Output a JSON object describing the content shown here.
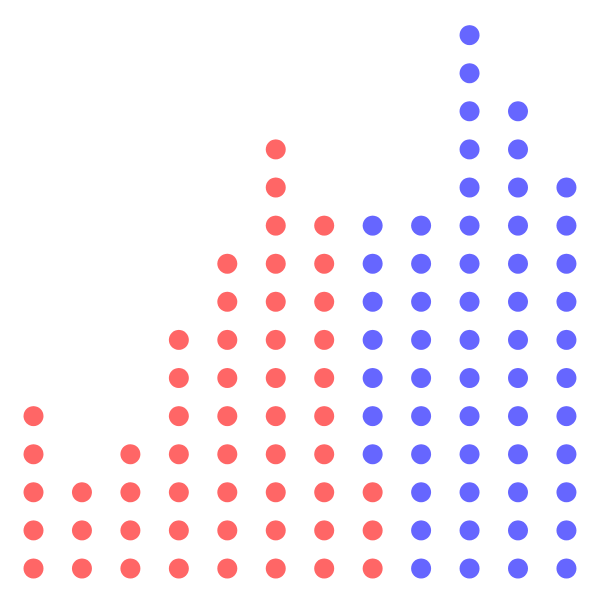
{
  "chart_data": {
    "type": "dot-stack",
    "title": "",
    "xlabel": "",
    "ylabel": "",
    "grid": false,
    "legend": "none",
    "ylim": [
      0,
      15
    ],
    "colors": {
      "red": "#ff6666",
      "blue": "#6666ff"
    },
    "columns": [
      {
        "index": 1,
        "red": 5,
        "blue": 0
      },
      {
        "index": 2,
        "red": 3,
        "blue": 0
      },
      {
        "index": 3,
        "red": 4,
        "blue": 0
      },
      {
        "index": 4,
        "red": 7,
        "blue": 0
      },
      {
        "index": 5,
        "red": 9,
        "blue": 0
      },
      {
        "index": 6,
        "red": 12,
        "blue": 0
      },
      {
        "index": 7,
        "red": 10,
        "blue": 0
      },
      {
        "index": 8,
        "red": 3,
        "blue": 7
      },
      {
        "index": 9,
        "red": 0,
        "blue": 10
      },
      {
        "index": 10,
        "red": 0,
        "blue": 15
      },
      {
        "index": 11,
        "red": 0,
        "blue": 13
      },
      {
        "index": 12,
        "red": 0,
        "blue": 11
      }
    ]
  }
}
